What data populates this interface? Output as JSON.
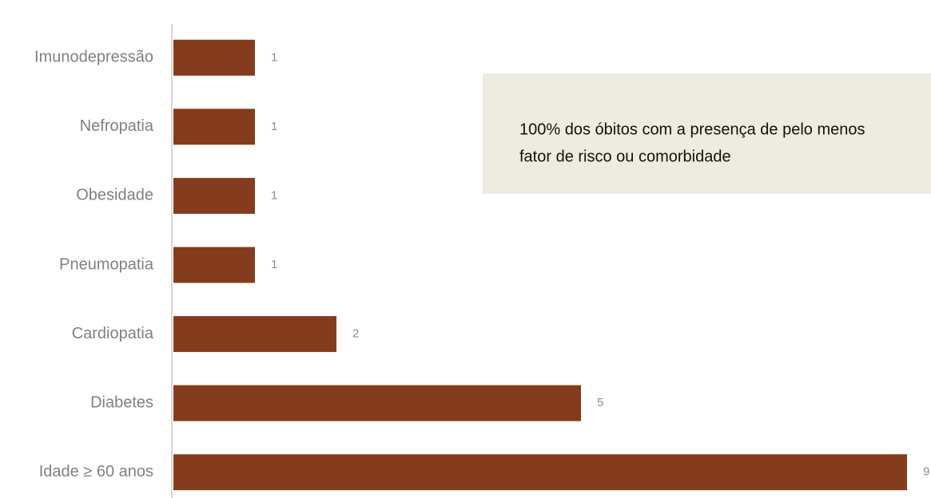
{
  "chart_data": {
    "type": "barh",
    "categories": [
      "Imunodepressão",
      "Nefropatia",
      "Obesidade",
      "Pneumopatia",
      "Cardiopatia",
      "Diabetes",
      "Idade ≥ 60 anos"
    ],
    "values": [
      1,
      1,
      1,
      1,
      2,
      5,
      9
    ],
    "color": "#843c1c",
    "xlim": [
      0,
      9
    ],
    "annotation": [
      "100% dos óbitos com a presença de pelo menos",
      "fator de risco ou comorbidade"
    ]
  }
}
